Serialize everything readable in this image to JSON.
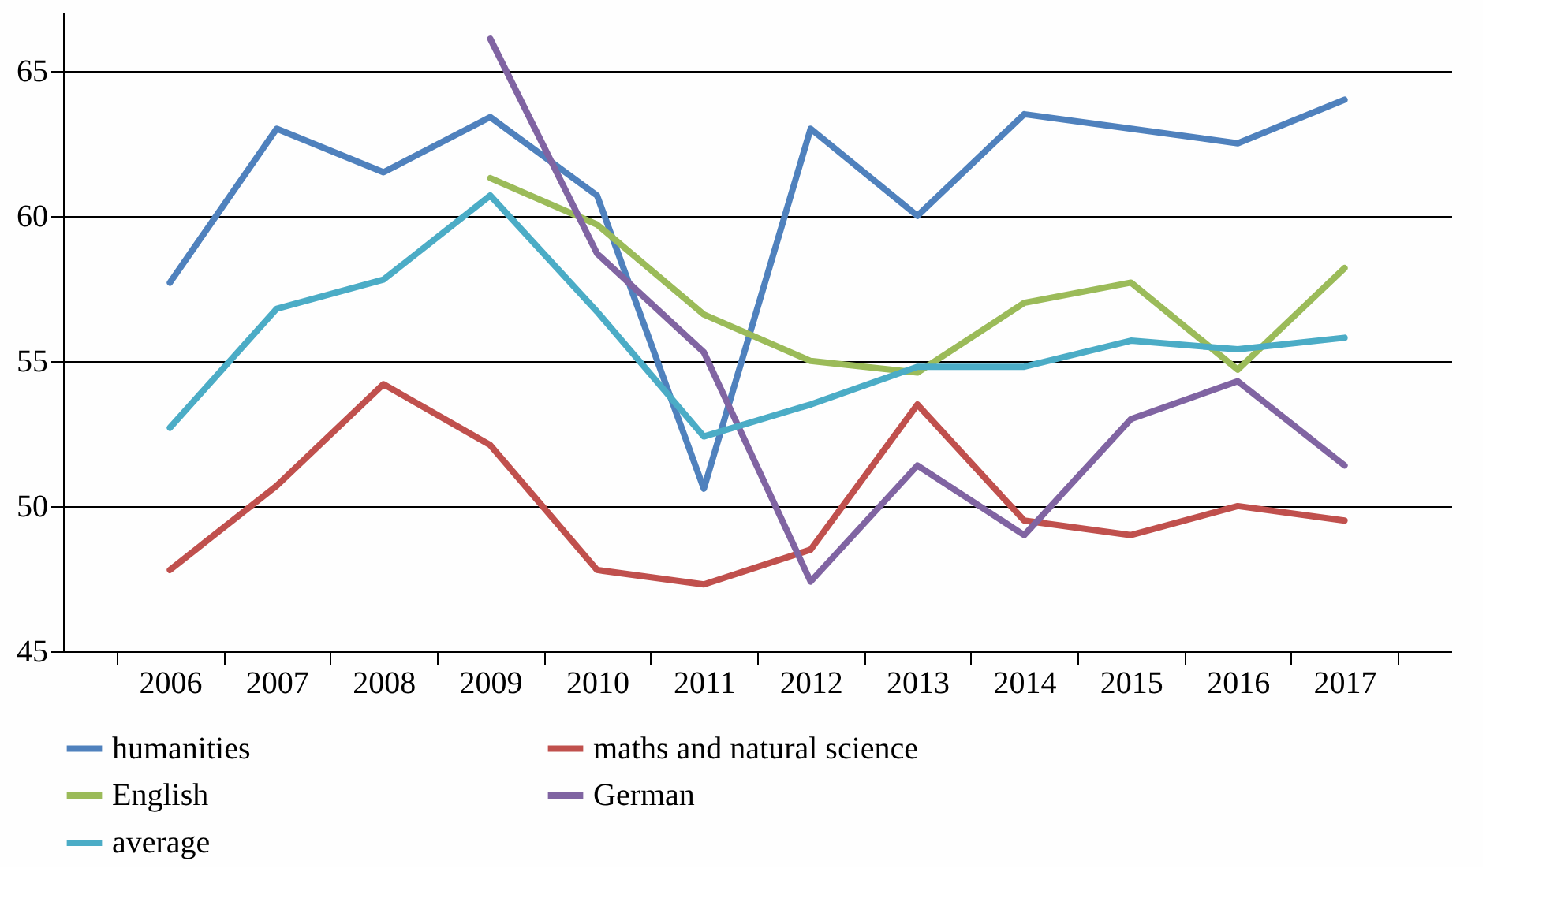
{
  "chart_data": {
    "type": "line",
    "categories": [
      "2006",
      "2007",
      "2008",
      "2009",
      "2010",
      "2011",
      "2012",
      "2013",
      "2014",
      "2015",
      "2016",
      "2017"
    ],
    "series": [
      {
        "name": "humanities",
        "color": "#4f81bd",
        "values": [
          57.7,
          63.0,
          61.5,
          63.4,
          60.7,
          50.6,
          63.0,
          60.0,
          63.5,
          63.0,
          62.5,
          64.0
        ]
      },
      {
        "name": "maths and natural science",
        "color": "#c0504d",
        "values": [
          47.8,
          50.7,
          54.2,
          52.1,
          47.8,
          47.3,
          48.5,
          53.5,
          49.5,
          49.0,
          50.0,
          49.5
        ]
      },
      {
        "name": "English",
        "color": "#9bbb59",
        "values": [
          null,
          null,
          null,
          61.3,
          59.7,
          56.6,
          55.0,
          54.6,
          57.0,
          57.7,
          54.7,
          58.2
        ]
      },
      {
        "name": "German",
        "color": "#8064a2",
        "values": [
          null,
          null,
          null,
          66.1,
          58.7,
          55.3,
          47.4,
          51.4,
          49.0,
          53.0,
          54.3,
          51.4
        ]
      },
      {
        "name": "average",
        "color": "#4bacc6",
        "values": [
          52.7,
          56.8,
          57.8,
          60.7,
          56.7,
          52.4,
          53.5,
          54.8,
          54.8,
          55.7,
          55.4,
          55.8
        ]
      }
    ],
    "ylim": [
      45,
      67
    ],
    "yticks": [
      45,
      50,
      55,
      60,
      65
    ],
    "grid": "y",
    "legend": "bottom",
    "marker": "none",
    "line_style": "solid"
  }
}
